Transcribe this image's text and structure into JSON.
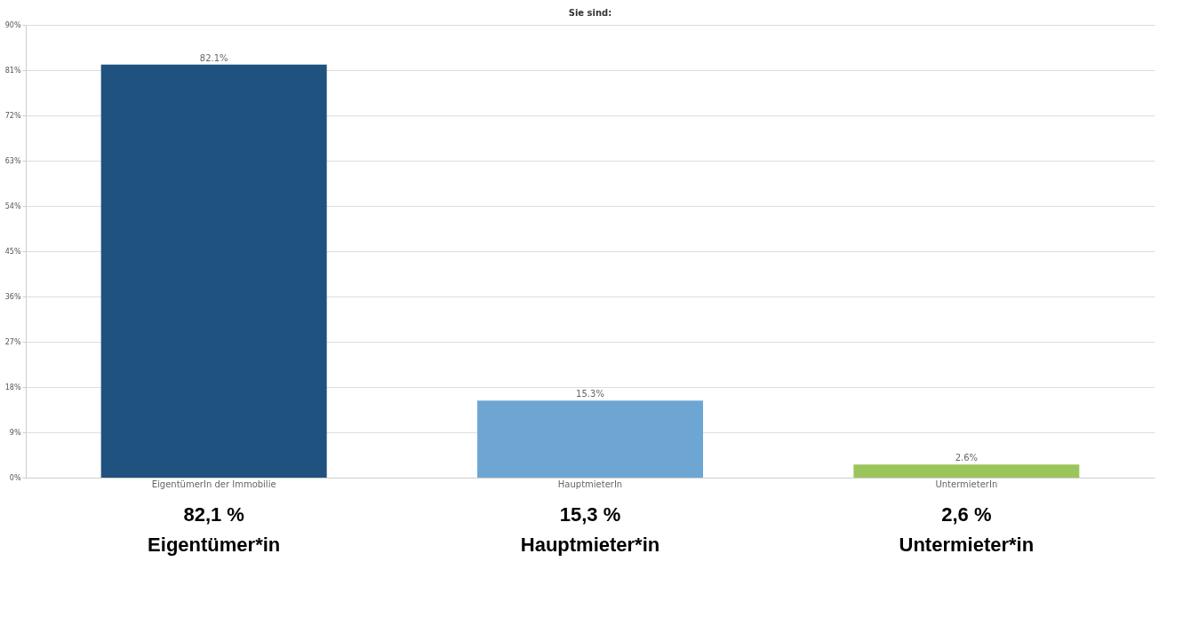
{
  "chart_data": {
    "type": "bar",
    "title": "Sie sind:",
    "categories": [
      "EigentümerIn der Immobilie",
      "HauptmieterIn",
      "UntermieterIn"
    ],
    "values": [
      82.1,
      15.3,
      2.6
    ],
    "colors": [
      "#1f527f",
      "#6ea6d3",
      "#9bc55a"
    ],
    "value_labels": [
      "82.1%",
      "15.3%",
      "2.6%"
    ],
    "ylim": [
      0,
      90
    ],
    "yticks": [
      {
        "value": 0,
        "label": "0%"
      },
      {
        "value": 9,
        "label": "9%"
      },
      {
        "value": 18,
        "label": "18%"
      },
      {
        "value": 27,
        "label": "27%"
      },
      {
        "value": 36,
        "label": "36%"
      },
      {
        "value": 45,
        "label": "45%"
      },
      {
        "value": 54,
        "label": "54%"
      },
      {
        "value": 63,
        "label": "63%"
      },
      {
        "value": 72,
        "label": "72%"
      },
      {
        "value": 81,
        "label": "81%"
      },
      {
        "value": 90,
        "label": "90%"
      }
    ],
    "grid": "y",
    "annotations": [
      "82,1 %\nEigentümer*in",
      "15,3 %\nHauptmieter*in",
      "2,6 %\nUntermieter*in"
    ]
  }
}
